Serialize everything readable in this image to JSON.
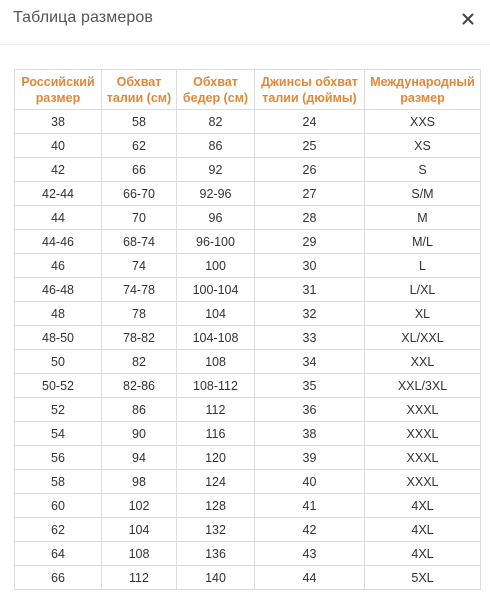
{
  "modal": {
    "title": "Таблица размеров",
    "close_icon": "close-icon"
  },
  "colors": {
    "header_text": "#e0883a",
    "body_text": "#333333",
    "border": "#dcdcdc"
  },
  "table": {
    "headers": [
      "Российский размер",
      "Обхват талии (см)",
      "Обхват бедер (см)",
      "Джинсы обхват талии (дюймы)",
      "Международный размер"
    ],
    "rows": [
      [
        "38",
        "58",
        "82",
        "24",
        "XXS"
      ],
      [
        "40",
        "62",
        "86",
        "25",
        "XS"
      ],
      [
        "42",
        "66",
        "92",
        "26",
        "S"
      ],
      [
        "42-44",
        "66-70",
        "92-96",
        "27",
        "S/M"
      ],
      [
        "44",
        "70",
        "96",
        "28",
        "M"
      ],
      [
        "44-46",
        "68-74",
        "96-100",
        "29",
        "M/L"
      ],
      [
        "46",
        "74",
        "100",
        "30",
        "L"
      ],
      [
        "46-48",
        "74-78",
        "100-104",
        "31",
        "L/XL"
      ],
      [
        "48",
        "78",
        "104",
        "32",
        "XL"
      ],
      [
        "48-50",
        "78-82",
        "104-108",
        "33",
        "XL/XXL"
      ],
      [
        "50",
        "82",
        "108",
        "34",
        "XXL"
      ],
      [
        "50-52",
        "82-86",
        "108-112",
        "35",
        "XXL/3XL"
      ],
      [
        "52",
        "86",
        "112",
        "36",
        "XXXL"
      ],
      [
        "54",
        "90",
        "116",
        "38",
        "XXXL"
      ],
      [
        "56",
        "94",
        "120",
        "39",
        "XXXL"
      ],
      [
        "58",
        "98",
        "124",
        "40",
        "XXXL"
      ],
      [
        "60",
        "102",
        "128",
        "41",
        "4XL"
      ],
      [
        "62",
        "104",
        "132",
        "42",
        "4XL"
      ],
      [
        "64",
        "108",
        "136",
        "43",
        "4XL"
      ],
      [
        "66",
        "112",
        "140",
        "44",
        "5XL"
      ]
    ]
  }
}
